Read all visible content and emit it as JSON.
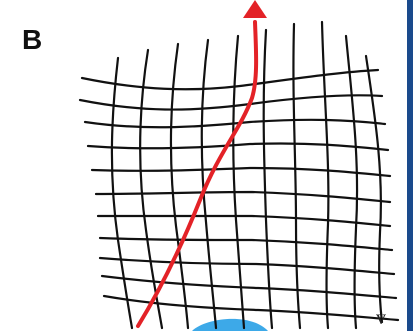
{
  "figure": {
    "panel_letter": "B",
    "edge_label": "v"
  },
  "colors": {
    "grid": "#111111",
    "trajectory": "#e32227",
    "blob": "#3da9e8",
    "strip": "#1a4a8c"
  },
  "elements": {
    "grid": "warped-grid",
    "trajectory": "red-arrow-trajectory",
    "blob": "blue-blob"
  }
}
